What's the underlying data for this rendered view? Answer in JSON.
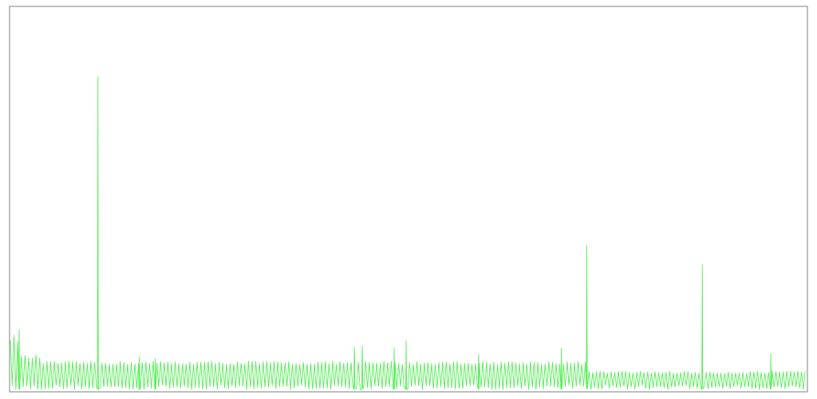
{
  "colors": {
    "background": "#ffffff",
    "frame": "#7f7f7f",
    "series": "#55ee55"
  },
  "chart_data": {
    "type": "line",
    "title": "",
    "xlabel": "",
    "ylabel": "",
    "xlim": [
      0,
      1000
    ],
    "ylim": [
      0,
      100
    ],
    "grid": false,
    "legend": "none",
    "series": [
      {
        "baseline_segments": [
          {
            "from": 0,
            "to": 10,
            "level": 14
          },
          {
            "from": 10,
            "to": 40,
            "level": 9
          },
          {
            "from": 40,
            "to": 726,
            "level": 7.5
          },
          {
            "from": 726,
            "to": 1000,
            "level": 5
          }
        ],
        "oscillation_period": 4.6,
        "spikes": [
          {
            "x": 11,
            "y": 16
          },
          {
            "x": 110,
            "y": 82
          },
          {
            "x": 162,
            "y": 9
          },
          {
            "x": 182,
            "y": 8.5
          },
          {
            "x": 432,
            "y": 11.5
          },
          {
            "x": 442,
            "y": 11.8
          },
          {
            "x": 482,
            "y": 11.3
          },
          {
            "x": 497,
            "y": 13.2
          },
          {
            "x": 588,
            "y": 9.7
          },
          {
            "x": 692,
            "y": 11.3
          },
          {
            "x": 724,
            "y": 38
          },
          {
            "x": 869,
            "y": 33
          },
          {
            "x": 955,
            "y": 9.8
          }
        ]
      }
    ]
  }
}
